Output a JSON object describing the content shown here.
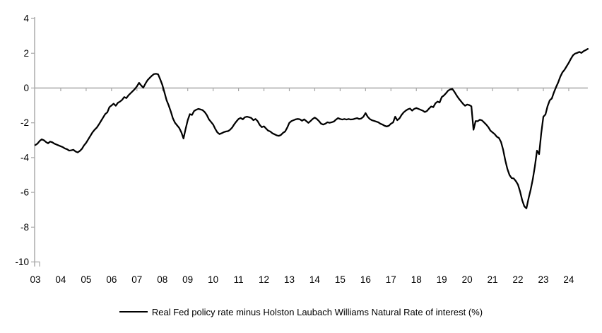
{
  "chart_data": {
    "type": "line",
    "title": "",
    "legend_position": "bottom",
    "grid": "zero-line-only",
    "x_tick_labels": [
      "03",
      "04",
      "05",
      "06",
      "07",
      "08",
      "09",
      "10",
      "11",
      "12",
      "13",
      "14",
      "15",
      "16",
      "17",
      "18",
      "19",
      "20",
      "21",
      "22",
      "23",
      "24"
    ],
    "y_ticks": [
      4,
      2,
      0,
      -2,
      -4,
      -6,
      -8,
      -10
    ],
    "ylim": [
      -10,
      4
    ],
    "x_start": "2003-01",
    "frequency": "monthly",
    "colors": {
      "line": "#000000",
      "axis": "#a6a6a6",
      "tick_text": "#000000"
    },
    "series": [
      {
        "name": "Real Fed policy rate minus Holston Laubach Williams Natural Rate of interest (%)",
        "values": [
          -3.28,
          -3.2,
          -3.05,
          -2.95,
          -3.0,
          -3.1,
          -3.18,
          -3.08,
          -3.12,
          -3.2,
          -3.25,
          -3.3,
          -3.35,
          -3.4,
          -3.48,
          -3.52,
          -3.6,
          -3.58,
          -3.55,
          -3.65,
          -3.7,
          -3.62,
          -3.5,
          -3.3,
          -3.15,
          -2.95,
          -2.75,
          -2.55,
          -2.4,
          -2.28,
          -2.1,
          -1.9,
          -1.7,
          -1.5,
          -1.4,
          -1.1,
          -1.0,
          -0.9,
          -1.02,
          -0.85,
          -0.78,
          -0.68,
          -0.52,
          -0.58,
          -0.42,
          -0.3,
          -0.18,
          -0.06,
          0.1,
          0.3,
          0.15,
          0.02,
          0.25,
          0.45,
          0.58,
          0.7,
          0.8,
          0.82,
          0.79,
          0.5,
          0.18,
          -0.25,
          -0.7,
          -1.0,
          -1.35,
          -1.75,
          -2.0,
          -2.15,
          -2.3,
          -2.55,
          -2.9,
          -2.35,
          -1.85,
          -1.5,
          -1.55,
          -1.32,
          -1.25,
          -1.2,
          -1.23,
          -1.27,
          -1.38,
          -1.55,
          -1.8,
          -1.95,
          -2.1,
          -2.35,
          -2.55,
          -2.65,
          -2.6,
          -2.54,
          -2.5,
          -2.48,
          -2.4,
          -2.27,
          -2.08,
          -1.92,
          -1.78,
          -1.72,
          -1.8,
          -1.68,
          -1.65,
          -1.68,
          -1.72,
          -1.85,
          -1.78,
          -1.9,
          -2.12,
          -2.25,
          -2.2,
          -2.33,
          -2.45,
          -2.5,
          -2.6,
          -2.66,
          -2.72,
          -2.75,
          -2.7,
          -2.58,
          -2.5,
          -2.28,
          -2.0,
          -1.9,
          -1.85,
          -1.8,
          -1.78,
          -1.8,
          -1.88,
          -1.8,
          -1.9,
          -2.0,
          -1.9,
          -1.78,
          -1.7,
          -1.78,
          -1.9,
          -2.05,
          -2.1,
          -2.05,
          -1.97,
          -2.0,
          -1.97,
          -1.93,
          -1.82,
          -1.73,
          -1.78,
          -1.81,
          -1.78,
          -1.81,
          -1.78,
          -1.81,
          -1.8,
          -1.76,
          -1.73,
          -1.78,
          -1.75,
          -1.65,
          -1.44,
          -1.65,
          -1.78,
          -1.85,
          -1.89,
          -1.93,
          -1.97,
          -2.05,
          -2.1,
          -2.17,
          -2.21,
          -2.17,
          -2.05,
          -1.98,
          -1.65,
          -1.85,
          -1.75,
          -1.55,
          -1.4,
          -1.3,
          -1.22,
          -1.18,
          -1.3,
          -1.2,
          -1.15,
          -1.2,
          -1.25,
          -1.3,
          -1.38,
          -1.32,
          -1.18,
          -1.06,
          -1.1,
          -0.88,
          -0.78,
          -0.83,
          -0.52,
          -0.43,
          -0.3,
          -0.15,
          -0.08,
          -0.05,
          -0.22,
          -0.42,
          -0.6,
          -0.75,
          -0.9,
          -1.02,
          -0.95,
          -0.98,
          -1.05,
          -2.4,
          -1.9,
          -1.91,
          -1.82,
          -1.86,
          -1.98,
          -2.1,
          -2.25,
          -2.45,
          -2.55,
          -2.65,
          -2.8,
          -2.87,
          -3.1,
          -3.55,
          -4.15,
          -4.65,
          -5.0,
          -5.18,
          -5.2,
          -5.35,
          -5.55,
          -5.95,
          -6.45,
          -6.8,
          -6.92,
          -6.35,
          -5.85,
          -5.25,
          -4.5,
          -3.6,
          -3.8,
          -2.6,
          -1.65,
          -1.52,
          -1.04,
          -0.71,
          -0.6,
          -0.25,
          0.05,
          0.32,
          0.65,
          0.9,
          1.05,
          1.25,
          1.45,
          1.68,
          1.88,
          1.98,
          2.02,
          2.08,
          2.02,
          2.12,
          2.18,
          2.25
        ]
      }
    ]
  }
}
